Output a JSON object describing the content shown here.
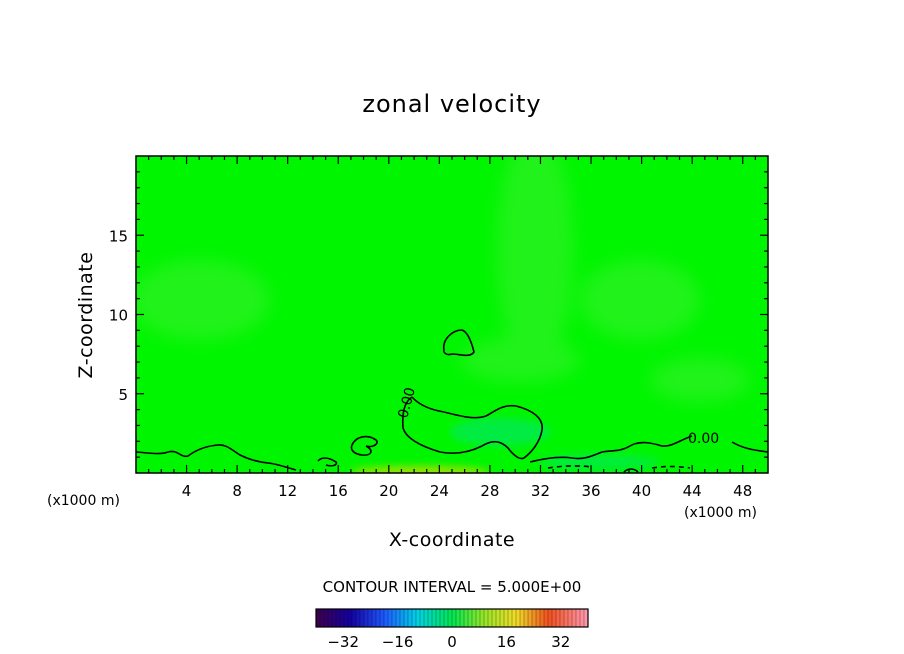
{
  "chart_data": {
    "type": "heatmap",
    "title": "zonal velocity",
    "xlabel": "X-coordinate",
    "ylabel": "Z-coordinate",
    "x_unit_left": "(x1000 m)",
    "x_unit_right": "(x1000 m)",
    "xlim": [
      0,
      50
    ],
    "ylim": [
      0,
      20
    ],
    "x_ticks": [
      4,
      8,
      12,
      16,
      20,
      24,
      28,
      32,
      36,
      40,
      44,
      48
    ],
    "y_ticks": [
      5,
      10,
      15
    ],
    "contour_labels": [
      {
        "text": "0.00",
        "x": 21.5,
        "z": 4.5,
        "angle": -75
      },
      {
        "text": "0.00",
        "x": 45.5,
        "z": 2.1,
        "angle": 0
      }
    ],
    "contour_interval_text": "CONTOUR INTERVAL = 5.000E+00",
    "colorbar": {
      "min": -40,
      "max": 40,
      "tick_values": [
        -32,
        -16,
        0,
        16,
        32
      ],
      "tick_labels": [
        "−32",
        "−16",
        "0",
        "16",
        "32"
      ]
    },
    "colors": {
      "field_background": "#00f500",
      "field_light": "#3cf030",
      "field_cyan": "#00e860",
      "field_yellow": "#a8e000",
      "contour": "#000000"
    }
  }
}
